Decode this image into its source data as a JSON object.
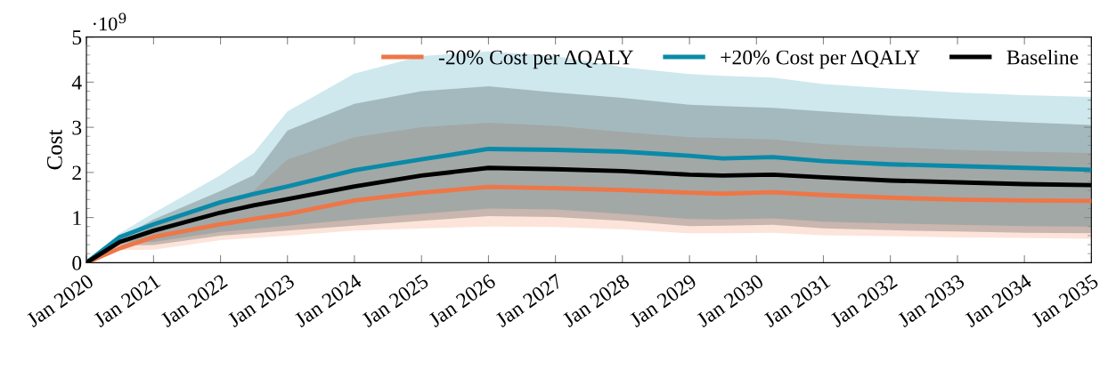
{
  "chart_data": {
    "type": "line",
    "ylabel": "Cost",
    "annotations": [
      "·10$^{9}$"
    ],
    "x": [
      "2020-01",
      "2020-07",
      "2021-01",
      "2022-01",
      "2022-07",
      "2023-01",
      "2024-01",
      "2025-01",
      "2026-01",
      "2027-01",
      "2028-01",
      "2029-01",
      "2029-07",
      "2030-04",
      "2031-01",
      "2032-01",
      "2033-01",
      "2034-01",
      "2035-01"
    ],
    "series": [
      {
        "name": "-20% Cost per ΔQALY",
        "color": "#ee7647",
        "values": [
          0,
          0.32,
          0.57,
          0.85,
          0.97,
          1.08,
          1.38,
          1.55,
          1.68,
          1.65,
          1.61,
          1.55,
          1.53,
          1.56,
          1.5,
          1.44,
          1.4,
          1.38,
          1.37
        ],
        "upper": [
          0,
          0.45,
          0.8,
          1.3,
          1.6,
          2.29,
          2.78,
          3.0,
          3.1,
          3.03,
          2.9,
          2.78,
          2.76,
          2.73,
          2.63,
          2.56,
          2.5,
          2.46,
          2.43
        ],
        "lower": [
          0,
          0.28,
          0.29,
          0.5,
          0.55,
          0.6,
          0.71,
          0.76,
          0.8,
          0.79,
          0.74,
          0.65,
          0.65,
          0.66,
          0.61,
          0.59,
          0.56,
          0.55,
          0.53
        ]
      },
      {
        "name": "+20% Cost per ΔQALY",
        "color": "#0a8aa8",
        "values": [
          0,
          0.57,
          0.85,
          1.34,
          1.52,
          1.69,
          2.05,
          2.29,
          2.52,
          2.5,
          2.46,
          2.37,
          2.31,
          2.34,
          2.25,
          2.18,
          2.14,
          2.1,
          2.06
        ],
        "upper": [
          0,
          0.65,
          1.1,
          1.94,
          2.43,
          3.35,
          4.19,
          4.58,
          4.68,
          4.58,
          4.33,
          4.18,
          4.14,
          4.1,
          3.96,
          3.86,
          3.77,
          3.71,
          3.67
        ],
        "lower": [
          0,
          0.45,
          0.46,
          0.68,
          0.75,
          0.82,
          0.96,
          1.08,
          1.2,
          1.18,
          1.08,
          0.97,
          0.96,
          0.98,
          0.91,
          0.87,
          0.84,
          0.81,
          0.8
        ]
      },
      {
        "name": "Baseline",
        "color": "#000000",
        "values": [
          0,
          0.46,
          0.71,
          1.11,
          1.27,
          1.41,
          1.69,
          1.93,
          2.1,
          2.07,
          2.03,
          1.95,
          1.93,
          1.95,
          1.89,
          1.82,
          1.78,
          1.74,
          1.72
        ],
        "upper": [
          0,
          0.55,
          0.96,
          1.59,
          1.94,
          2.93,
          3.52,
          3.8,
          3.91,
          3.77,
          3.65,
          3.5,
          3.47,
          3.43,
          3.35,
          3.26,
          3.18,
          3.11,
          3.05
        ],
        "lower": [
          0,
          0.38,
          0.39,
          0.6,
          0.65,
          0.71,
          0.82,
          0.93,
          1.03,
          1.01,
          0.93,
          0.81,
          0.82,
          0.84,
          0.76,
          0.72,
          0.69,
          0.66,
          0.65
        ]
      }
    ],
    "xlim": [
      "2020-01",
      "2035-01"
    ],
    "xticks": [
      {
        "value": "2020-01",
        "label": "Jan 2020"
      },
      {
        "value": "2021-01",
        "label": "Jan 2021"
      },
      {
        "value": "2022-01",
        "label": "Jan 2022"
      },
      {
        "value": "2023-01",
        "label": "Jan 2023"
      },
      {
        "value": "2024-01",
        "label": "Jan 2024"
      },
      {
        "value": "2025-01",
        "label": "Jan 2025"
      },
      {
        "value": "2026-01",
        "label": "Jan 2026"
      },
      {
        "value": "2027-01",
        "label": "Jan 2027"
      },
      {
        "value": "2028-01",
        "label": "Jan 2028"
      },
      {
        "value": "2029-01",
        "label": "Jan 2029"
      },
      {
        "value": "2030-01",
        "label": "Jan 2030"
      },
      {
        "value": "2031-01",
        "label": "Jan 2031"
      },
      {
        "value": "2032-01",
        "label": "Jan 2032"
      },
      {
        "value": "2033-01",
        "label": "Jan 2033"
      },
      {
        "value": "2034-01",
        "label": "Jan 2034"
      },
      {
        "value": "2035-01",
        "label": "Jan 2035"
      }
    ],
    "ylim": [
      0,
      5
    ],
    "yticks": [
      0,
      1,
      2,
      3,
      4,
      5
    ],
    "legend": "top right",
    "marker": "none",
    "line_style": "solid"
  }
}
